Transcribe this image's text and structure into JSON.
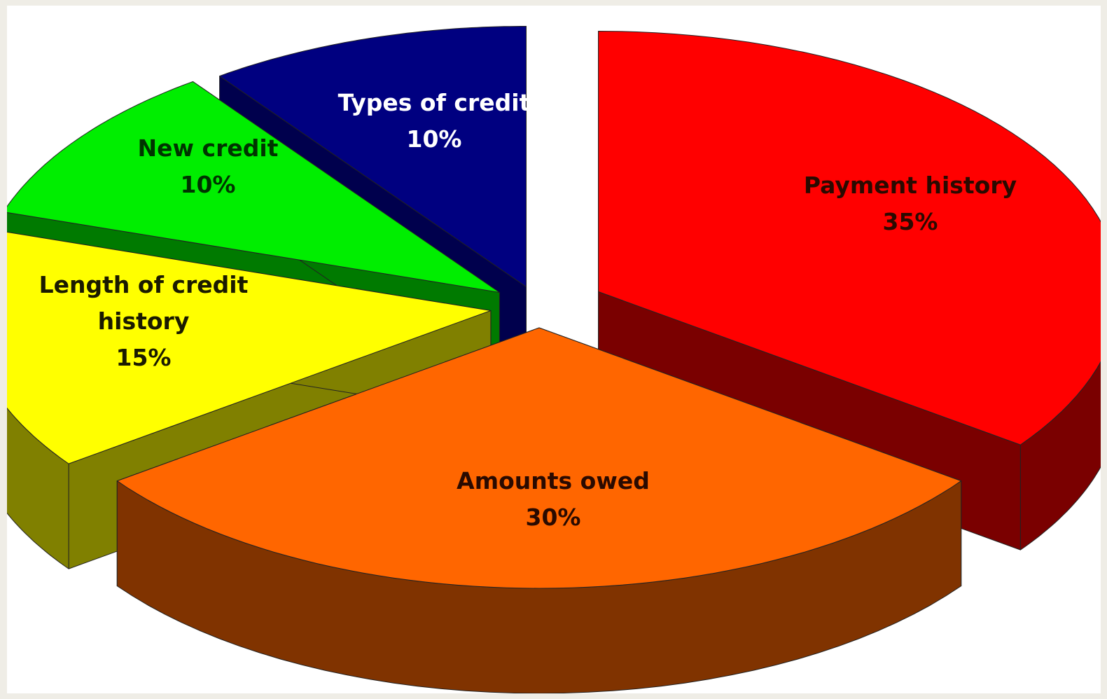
{
  "chart_data": {
    "type": "pie",
    "style": "3d-exploded",
    "title": "",
    "categories": [
      "Payment history",
      "Amounts owed",
      "Length of credit history",
      "New credit",
      "Types of credit"
    ],
    "values": [
      35,
      30,
      15,
      10,
      10
    ],
    "labels": [
      {
        "lines": [
          "Payment history",
          "35%"
        ],
        "color": "#2a0a00"
      },
      {
        "lines": [
          "Amounts owed",
          "30%"
        ],
        "color": "#2a0a00"
      },
      {
        "lines": [
          "Length of credit",
          "history",
          "15%"
        ],
        "color": "#1a1a00"
      },
      {
        "lines": [
          "New credit",
          "10%"
        ],
        "color": "#003300"
      },
      {
        "lines": [
          "Types of credit",
          "10%"
        ],
        "color": "#ffffff"
      }
    ],
    "colors": {
      "top": [
        "#ff0000",
        "#ff6600",
        "#ffff00",
        "#00ee00",
        "#000080"
      ],
      "side": [
        "#7a0000",
        "#803300",
        "#808000",
        "#007a00",
        "#00004d"
      ]
    },
    "legend": "none"
  }
}
